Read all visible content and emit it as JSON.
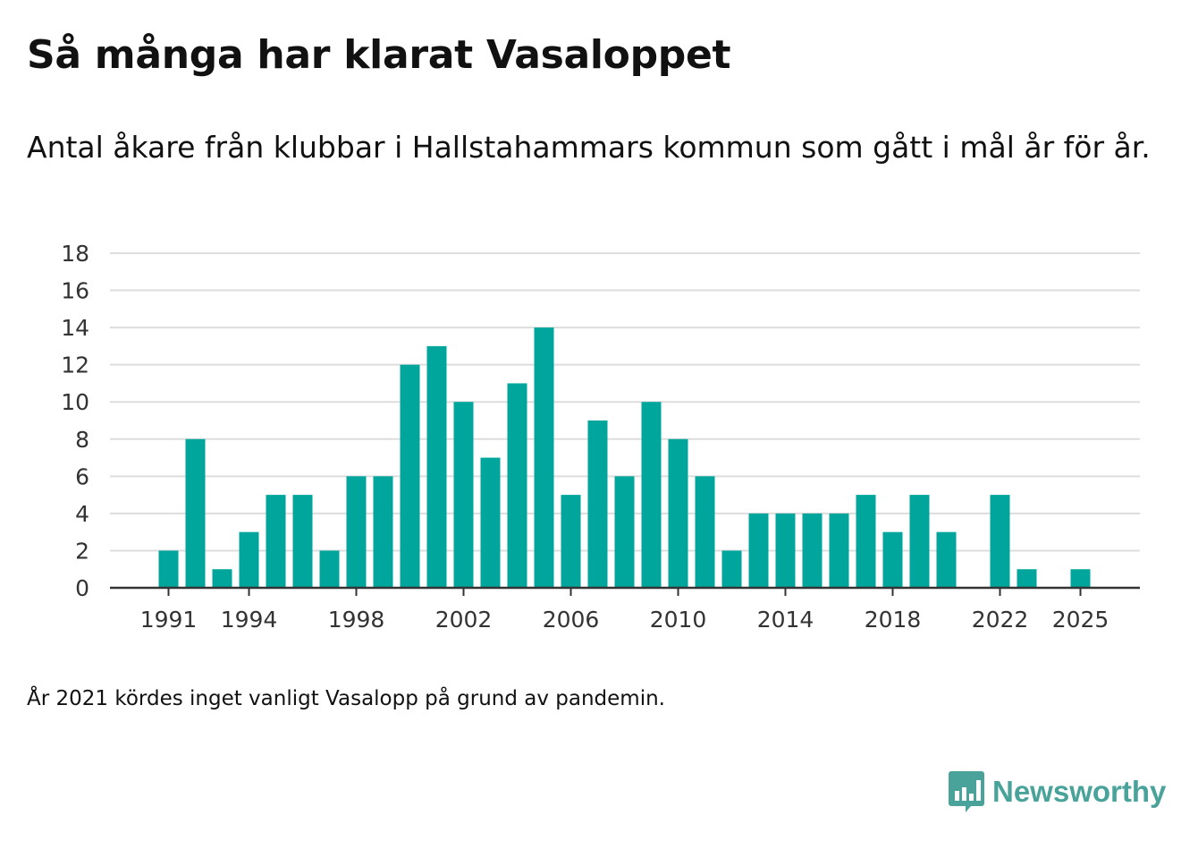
{
  "title": "Så många har klarat Vasaloppet",
  "subtitle": "Antal åkare från klubbar i Hallstahammars kommun som gått i mål år för år.",
  "footnote": "År 2021 kördes inget vanligt Vasalopp på grund av pandemin.",
  "brand": {
    "name": "Newsworthy",
    "icon": "newsworthy-logo-icon",
    "color": "#4aa39a"
  },
  "colors": {
    "bar": "#00a69c",
    "grid": "#dddddd",
    "axis": "#333333"
  },
  "chart_data": {
    "type": "bar",
    "title": "Så många har klarat Vasaloppet",
    "xlabel": "",
    "ylabel": "",
    "ylim": [
      0,
      18
    ],
    "grid": true,
    "categories": [
      1990,
      1991,
      1992,
      1993,
      1994,
      1995,
      1996,
      1997,
      1998,
      1999,
      2000,
      2001,
      2002,
      2003,
      2004,
      2005,
      2006,
      2007,
      2008,
      2009,
      2010,
      2011,
      2012,
      2013,
      2014,
      2015,
      2016,
      2017,
      2018,
      2019,
      2020,
      2021,
      2022,
      2023,
      2024,
      2025,
      2026
    ],
    "values": [
      0,
      2,
      8,
      1,
      3,
      5,
      5,
      2,
      6,
      6,
      12,
      13,
      10,
      7,
      11,
      14,
      5,
      9,
      6,
      10,
      8,
      6,
      2,
      4,
      4,
      4,
      4,
      5,
      3,
      5,
      3,
      0,
      5,
      1,
      0,
      1,
      0
    ],
    "x_ticks": [
      "1991",
      "1994",
      "1998",
      "2002",
      "2006",
      "2010",
      "2014",
      "2018",
      "2022",
      "2025"
    ],
    "y_ticks": [
      "0",
      "2",
      "4",
      "6",
      "8",
      "10",
      "12",
      "14",
      "16",
      "18"
    ]
  }
}
